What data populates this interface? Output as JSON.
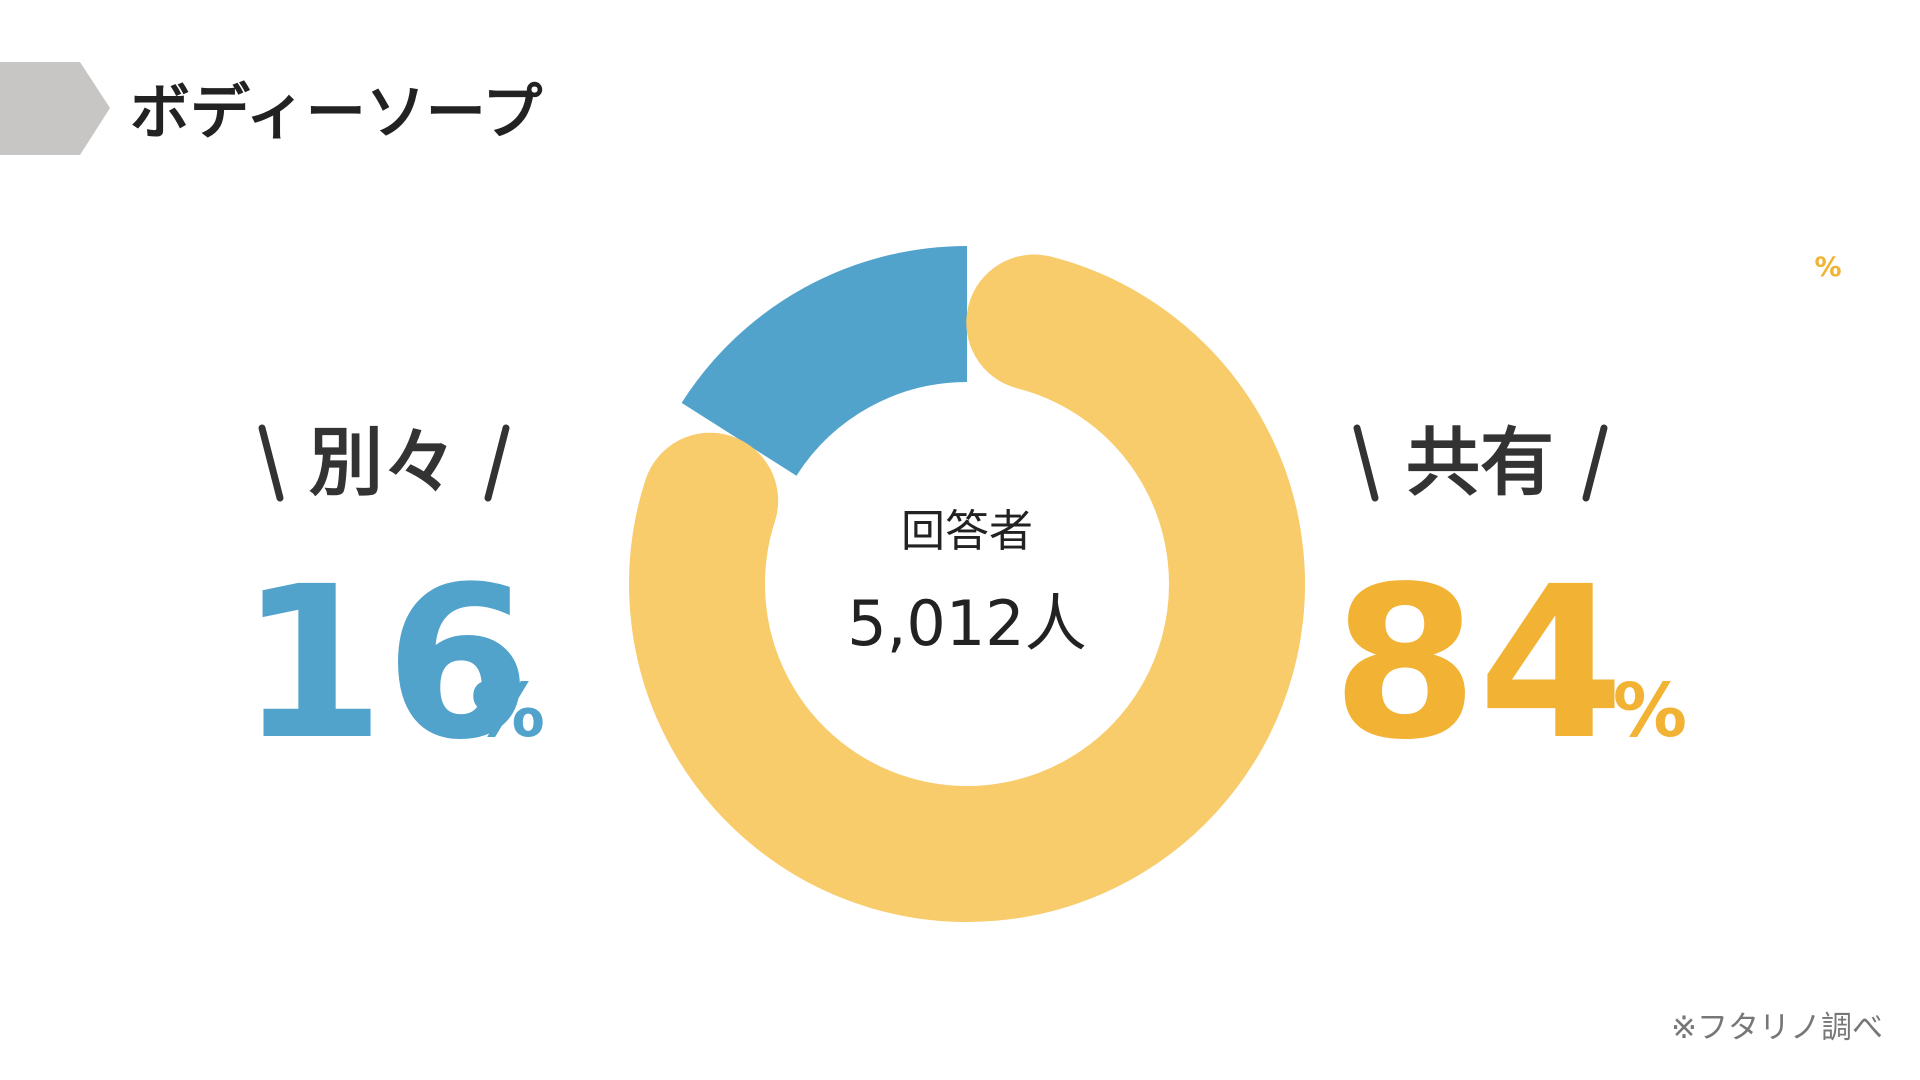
{
  "chart_data": {
    "type": "donut",
    "title": "ボディーソープ",
    "categories": [
      "別々",
      "共有"
    ],
    "values": [
      16,
      84
    ],
    "colors": [
      "#52a3cc",
      "#f8cb6b"
    ],
    "label_colors": [
      "#52a3cc",
      "#f2b233"
    ],
    "unit": "%",
    "center_text": [
      "回答者",
      "5,012人"
    ],
    "annotations": [
      "%"
    ],
    "footnote": "※フタリノ調べ"
  }
}
